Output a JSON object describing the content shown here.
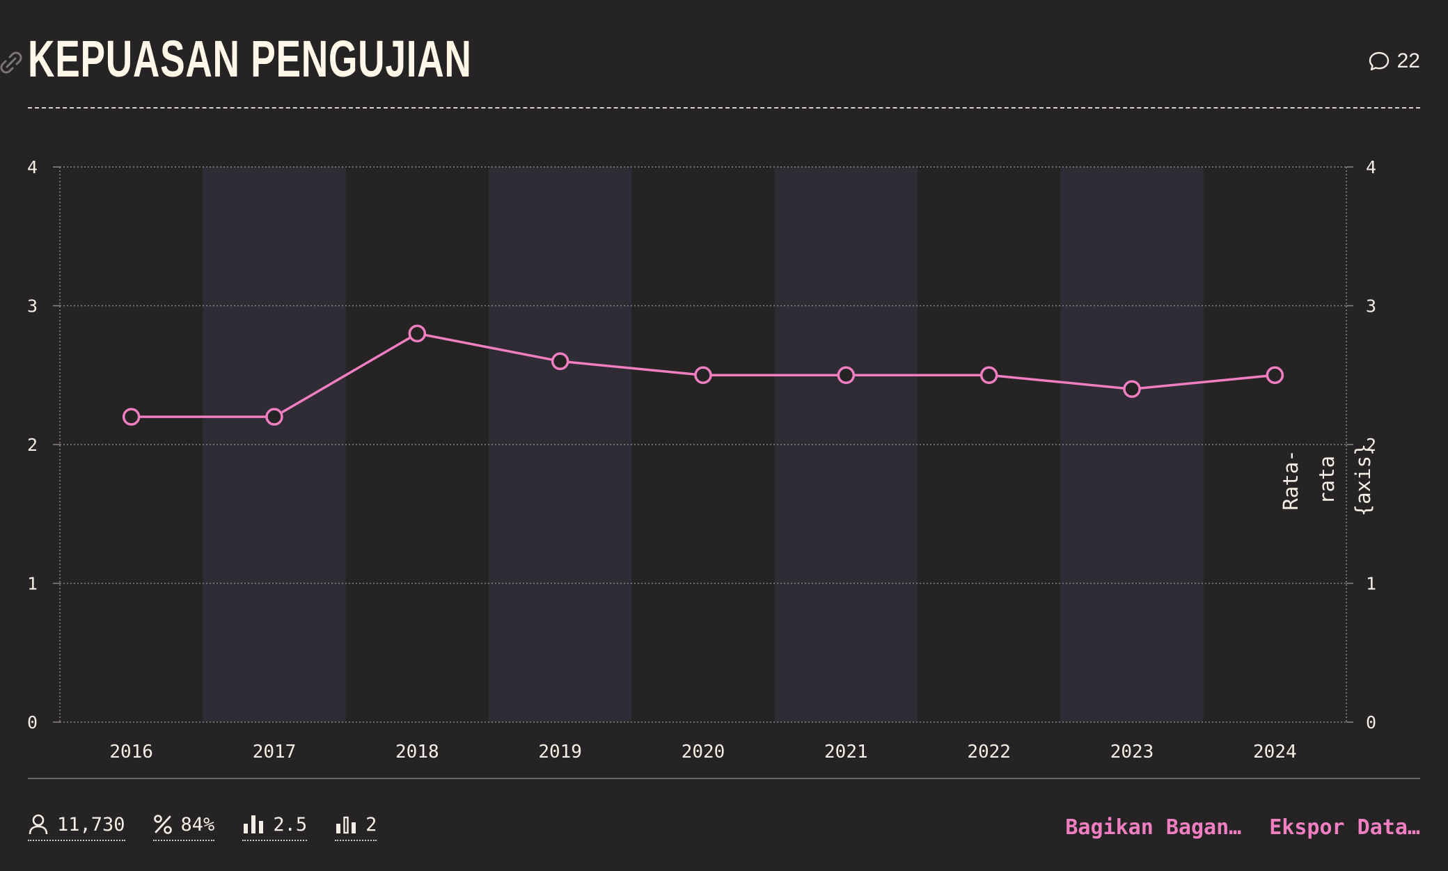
{
  "header": {
    "title": "KEPUASAN PENGUJIAN",
    "comment_count": "22"
  },
  "chart_data": {
    "type": "line",
    "title": "KEPUASAN PENGUJIAN",
    "categories": [
      "2016",
      "2017",
      "2018",
      "2019",
      "2020",
      "2021",
      "2022",
      "2023",
      "2024"
    ],
    "series": [
      {
        "values": [
          2.2,
          2.2,
          2.8,
          2.6,
          2.5,
          2.5,
          2.5,
          2.4,
          2.5
        ]
      }
    ],
    "ylim": [
      0,
      4
    ],
    "yticks": [
      "0",
      "1",
      "2",
      "3",
      "4"
    ],
    "right_axis_label": [
      "Rata-",
      "rata",
      "{axis}"
    ],
    "grid": true,
    "alternating_column_bands": true,
    "colors": {
      "line": "#f07fc2",
      "band": "#302c35",
      "background": "#262324",
      "grid": "#8a8686"
    }
  },
  "footer": {
    "stats": [
      {
        "icon": "person-icon",
        "value": "11,730"
      },
      {
        "icon": "percent-icon",
        "value": "84%"
      },
      {
        "icon": "bar-chart-icon",
        "value": "2.5"
      },
      {
        "icon": "bar-chart-outline-icon",
        "value": "2"
      }
    ],
    "share_label": "Bagikan Bagan…",
    "export_label": "Ekspor Data…"
  }
}
